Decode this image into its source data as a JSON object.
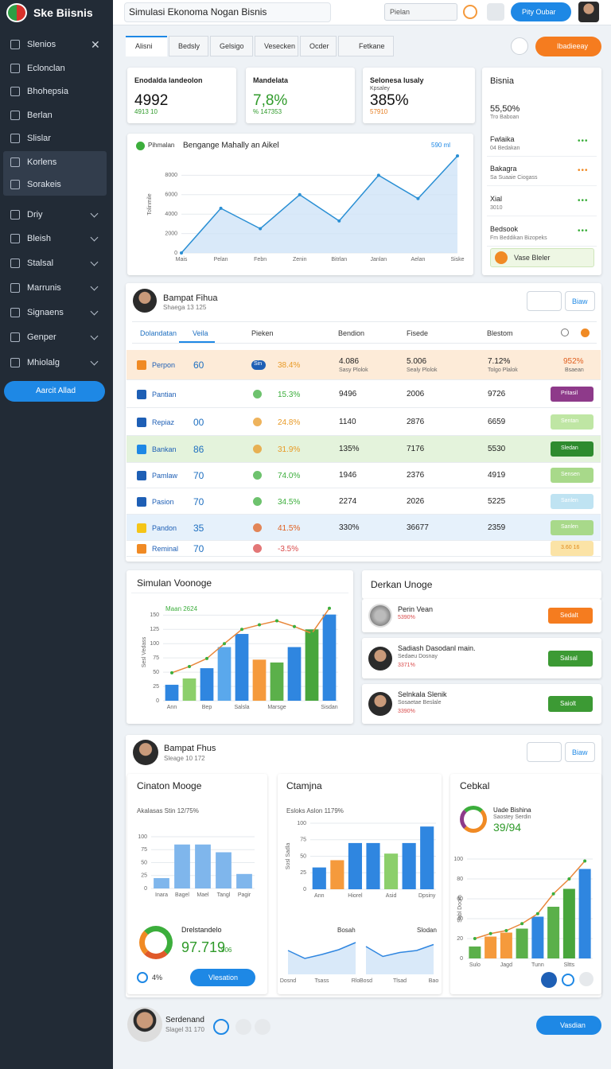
{
  "sidebar": {
    "brand": "Ske Biisnis",
    "items": [
      "Slenios",
      "Eclonclan",
      "Bhohepsia",
      "Berlan",
      "Slislar",
      "Korlens",
      "Sorakeis",
      "Driy",
      "Bleish",
      "Stalsal",
      "Marrunis",
      "Signaens",
      "Genper",
      "Mhiolalg"
    ],
    "button": "Aarcit Allad"
  },
  "header": {
    "search": "Simulasi Ekonoma Nogan Bisnis",
    "field": "Pielan",
    "button": "Pity Oubar"
  },
  "tabs": [
    "Alisni",
    "Bedsly",
    "Gelsigo",
    "Vesecken",
    "Ocder",
    "Fetkane"
  ],
  "action": "Ibadieeay",
  "kpis": [
    {
      "label": "Enodalda landeolon",
      "value": "4992",
      "sub": "4913 10"
    },
    {
      "label": "Mandelata",
      "value": "7,8%",
      "sub": "% 147353"
    },
    {
      "label": "Selonesa lusaly",
      "note": "Kpsaley",
      "value": "385%",
      "sub": "57910"
    }
  ],
  "bisnia": {
    "title": "Bisnia",
    "items": [
      {
        "name": "55,50%",
        "sub": "Tro Baboan"
      },
      {
        "name": "Fwlaika",
        "sub": "04 Bedakan"
      },
      {
        "name": "Bakagra",
        "sub": "Sa Suaaie Ciogass"
      },
      {
        "name": "Xial",
        "sub": "3010"
      },
      {
        "name": "Bedsook",
        "sub": "Fm Beddikan Bizopeks"
      }
    ],
    "button": "Vase Bleler"
  },
  "table": {
    "profile": "Bampat Fihua",
    "profile_sub": "Shaega 13 125",
    "button": "Biaw",
    "columns": [
      "Dolandatan",
      "Veila",
      "Pieken",
      "Bendion",
      "Fisede",
      "Blestom"
    ],
    "rows": [
      {
        "name": "Perpon",
        "count": "60",
        "tag": "Sin",
        "pct": "38.4%",
        "c1": "4.086",
        "c2": "5.006",
        "c3": "7.12%",
        "status": "952%",
        "subs": [
          "Sasy Plolok",
          "Sealy Plolok",
          "Tolgo Plalok",
          "Bsaean"
        ]
      },
      {
        "name": "Pantian",
        "pct": "15.3%",
        "c1": "9496",
        "c2": "2006",
        "c3": "9726",
        "status": "Pritasil"
      },
      {
        "name": "Repiaz",
        "count": "00",
        "pct": "24.8%",
        "c1": "1140",
        "c2": "2876",
        "c3": "6659",
        "status": "Sentan"
      },
      {
        "name": "Bankan",
        "count": "86",
        "pct": "31.9%",
        "c1": "135%",
        "c2": "7176",
        "c3": "5530",
        "status": "Sledan"
      },
      {
        "name": "Pamlaw",
        "count": "70",
        "pct": "74.0%",
        "c1": "1946",
        "c2": "2376",
        "c3": "4919",
        "status": "Sensen"
      },
      {
        "name": "Pasion",
        "count": "70",
        "pct": "34.5%",
        "c1": "2274",
        "c2": "2026",
        "c3": "5225",
        "status": "Sanlen"
      },
      {
        "name": "Pandon",
        "count": "35",
        "pct": "41.5%",
        "c1": "330%",
        "c2": "36677",
        "c3": "2359",
        "status": "Sanlen"
      },
      {
        "name": "Reminal",
        "count": "70",
        "pct": "-3.5%",
        "status": "3.60 16"
      }
    ]
  },
  "derkan": {
    "title": "Derkan Unoge",
    "items": [
      {
        "name": "Perin Vean",
        "pct": "5390%",
        "button": "Sedalt"
      },
      {
        "name": "Sadiash Dasodanl main.",
        "sub": "Sedaeu Dosnay",
        "pct": "3371%",
        "button": "Salsal"
      },
      {
        "name": "Selnkala Slenik",
        "sub": "Sosaetae Beslale",
        "pct": "3390%",
        "button": "Saiolt"
      }
    ]
  },
  "section2": {
    "profile": "Bampat Fhus",
    "profile_sub": "Sleage 10 172",
    "button": "Biaw",
    "donut_label": "Drelstandelo",
    "donut_value": "97.719",
    "donut_small": "906",
    "footer_pct": "4%",
    "footer_button": "Vlesation",
    "card3_label": "Uade Bishina",
    "card3_sub": "Saostey Serdin",
    "card3_value": "39/94"
  },
  "footer": {
    "name": "Serdenand",
    "sub": "Slagel 31 170",
    "button": "Vasdian"
  },
  "chart_data": [
    {
      "type": "area",
      "title": "Bengange Mahally an Aikel",
      "annotation": "590 ml",
      "ylabel": "Tolinmile",
      "categories": [
        "Mais",
        "Pelan",
        "Febn",
        "Zenin",
        "Bitrlan",
        "Janlan",
        "Aelan",
        "Siske"
      ],
      "ylim": [
        0,
        10000
      ],
      "yticks": [
        0,
        2000,
        4000,
        6000,
        8000
      ],
      "series": [
        {
          "name": "Pihmalan",
          "color": "#2a8fd4",
          "values": [
            0,
            4600,
            2500,
            6000,
            3300,
            8000,
            5600,
            10000
          ]
        }
      ]
    },
    {
      "type": "combo",
      "title": "Simulan Voonoge",
      "ylabel": "Sesl Vedass",
      "categories": [
        "Ann",
        null,
        "Bep",
        null,
        "Salsla",
        null,
        "Marsge",
        null,
        null,
        "Sisdan"
      ],
      "ylim": [
        0,
        170
      ],
      "yticks": [
        0,
        25,
        50,
        75,
        100,
        125,
        150
      ],
      "series": [
        {
          "kind": "bar",
          "colors": [
            "#2f86e0",
            "#8ccf6b",
            "#2f86e0",
            "#5aa8ec",
            "#2f86e0",
            "#f59a3c",
            "#5bb04a",
            "#2f86e0",
            "#48a63c",
            "#2f86e0"
          ],
          "values": [
            28,
            39,
            57,
            94,
            117,
            72,
            67,
            94,
            125,
            151
          ]
        },
        {
          "kind": "line",
          "name": "Maan 2624",
          "color": "#e8873a",
          "values": [
            49,
            60,
            74,
            100,
            125,
            133,
            140,
            130,
            118,
            162
          ]
        }
      ]
    },
    {
      "type": "bar",
      "title": "Cinaton Mooge",
      "subtitle": "Akalasas Stin 12/75%",
      "categories": [
        "Inara",
        "Bagel",
        "Mael",
        "Tangl",
        "Pagir"
      ],
      "ylim": [
        0,
        100
      ],
      "yticks": [
        0,
        25,
        50,
        75,
        100
      ],
      "series": [
        {
          "color": "#7fb6ec",
          "values": [
            20,
            85,
            85,
            70,
            28
          ]
        }
      ]
    },
    {
      "type": "bar",
      "title": "Ctamjna",
      "subtitle": "Esloks Aslon 1179%",
      "ylabel": "Sosl Sadla",
      "categories": [
        "Ann",
        null,
        "Hiorel",
        null,
        "Asid",
        null,
        "Dpsiny"
      ],
      "ylim": [
        0,
        100
      ],
      "yticks": [
        0,
        25,
        50,
        75,
        100
      ],
      "series": [
        {
          "colors": [
            "#2f86e0",
            "#f59a3c",
            "#2f86e0",
            "#2f86e0",
            "#8ccf6b",
            "#2f86e0",
            "#2f86e0"
          ],
          "values": [
            33,
            44,
            70,
            70,
            54,
            70,
            95
          ]
        }
      ]
    },
    {
      "type": "area",
      "categories": [
        "Dosnd",
        null,
        "Tsass",
        null,
        "Rlo"
      ],
      "ylim": [
        0,
        100
      ],
      "series": [
        {
          "name": "Bosah",
          "color": "#2f86e0",
          "values": [
            60,
            40,
            50,
            62,
            80
          ]
        }
      ]
    },
    {
      "type": "area",
      "categories": [
        "Bosd",
        null,
        "Tlsad",
        null,
        "Bao"
      ],
      "ylim": [
        0,
        100
      ],
      "series": [
        {
          "name": "Slodan",
          "color": "#2f86e0",
          "values": [
            70,
            45,
            55,
            60,
            75
          ]
        }
      ]
    },
    {
      "type": "combo",
      "title": "Cebkal",
      "ylabel": "Sabl Doom",
      "categories": [
        "Sulo",
        null,
        "Jagd",
        null,
        "Tunn",
        null,
        "Sltts",
        null
      ],
      "ylim": [
        0,
        100
      ],
      "yticks": [
        0,
        20,
        40,
        60,
        80,
        100
      ],
      "series": [
        {
          "kind": "bar",
          "colors": [
            "#5bb04a",
            "#f59a3c",
            "#f59a3c",
            "#5bb04a",
            "#2f86e0",
            "#5bb04a",
            "#48a63c",
            "#2f86e0"
          ],
          "values": [
            12,
            22,
            26,
            30,
            42,
            52,
            70,
            90
          ]
        },
        {
          "kind": "line",
          "color": "#e8873a",
          "values": [
            20,
            25,
            28,
            35,
            45,
            65,
            80,
            98
          ]
        }
      ]
    }
  ]
}
